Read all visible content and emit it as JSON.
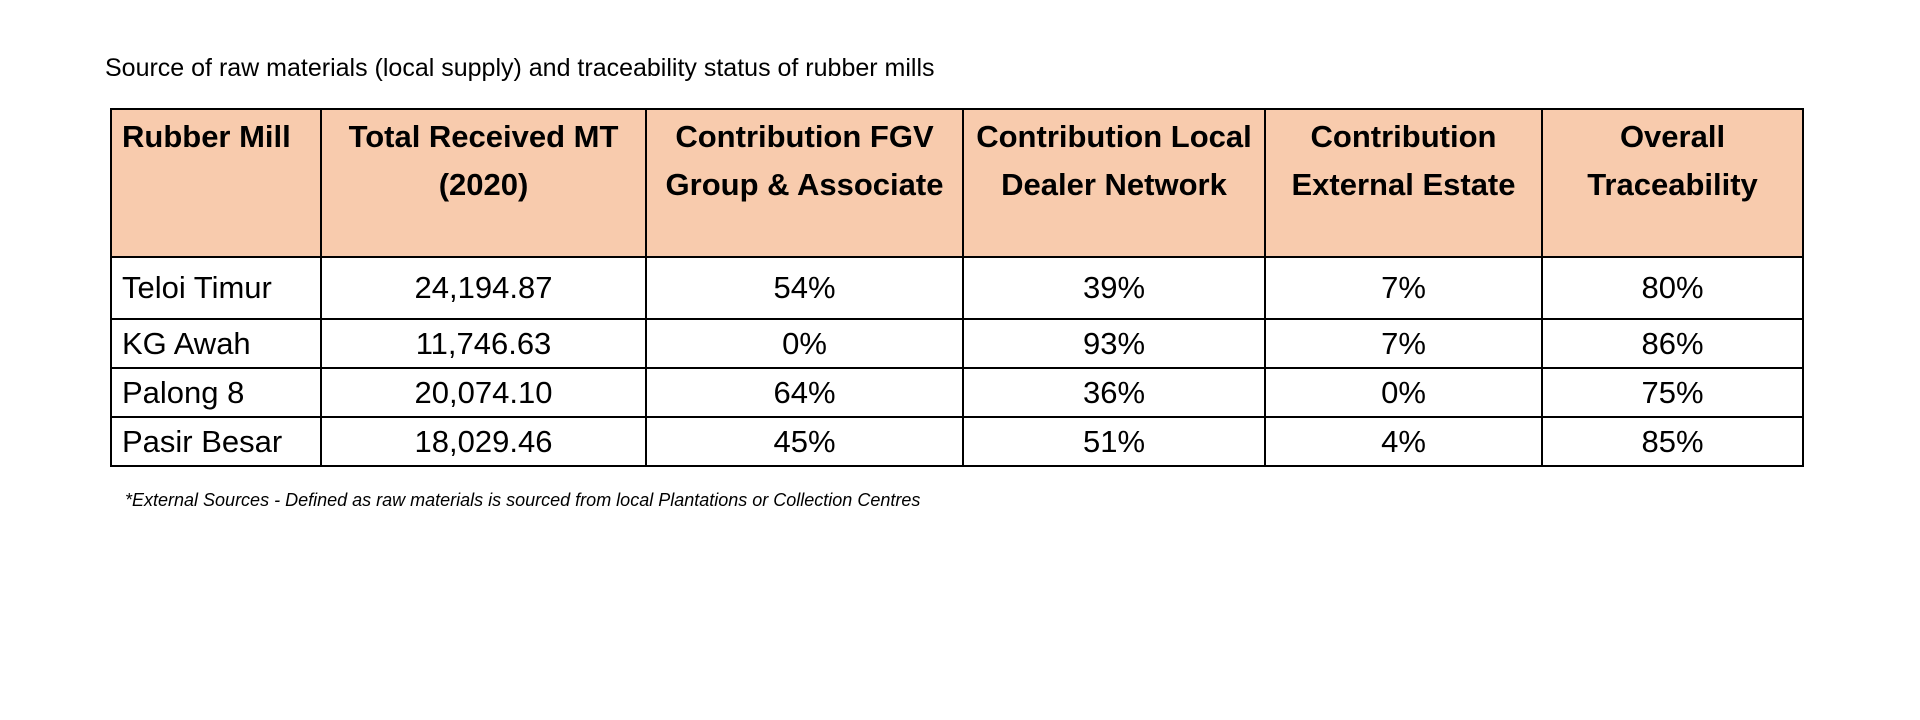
{
  "caption": "Source of raw materials (local supply) and traceability status of rubber mills",
  "table": {
    "headers": [
      "Rubber Mill",
      "Total Received MT (2020)",
      "Contribution FGV Group & Associate",
      "Contribution Local Dealer Network",
      "Contribution External Estate",
      "Overall Traceability"
    ],
    "rows": [
      [
        "Teloi Timur",
        "24,194.87",
        "54%",
        "39%",
        "7%",
        "80%"
      ],
      [
        "KG Awah",
        "11,746.63",
        "0%",
        "93%",
        "7%",
        "86%"
      ],
      [
        "Palong 8",
        "20,074.10",
        "64%",
        "36%",
        "0%",
        "75%"
      ],
      [
        "Pasir Besar",
        "18,029.46",
        "45%",
        "51%",
        "4%",
        "85%"
      ]
    ],
    "header_color": "#f8cbad"
  },
  "footnote": "*External Sources - Defined as raw materials is sourced from local Plantations or Collection Centres"
}
